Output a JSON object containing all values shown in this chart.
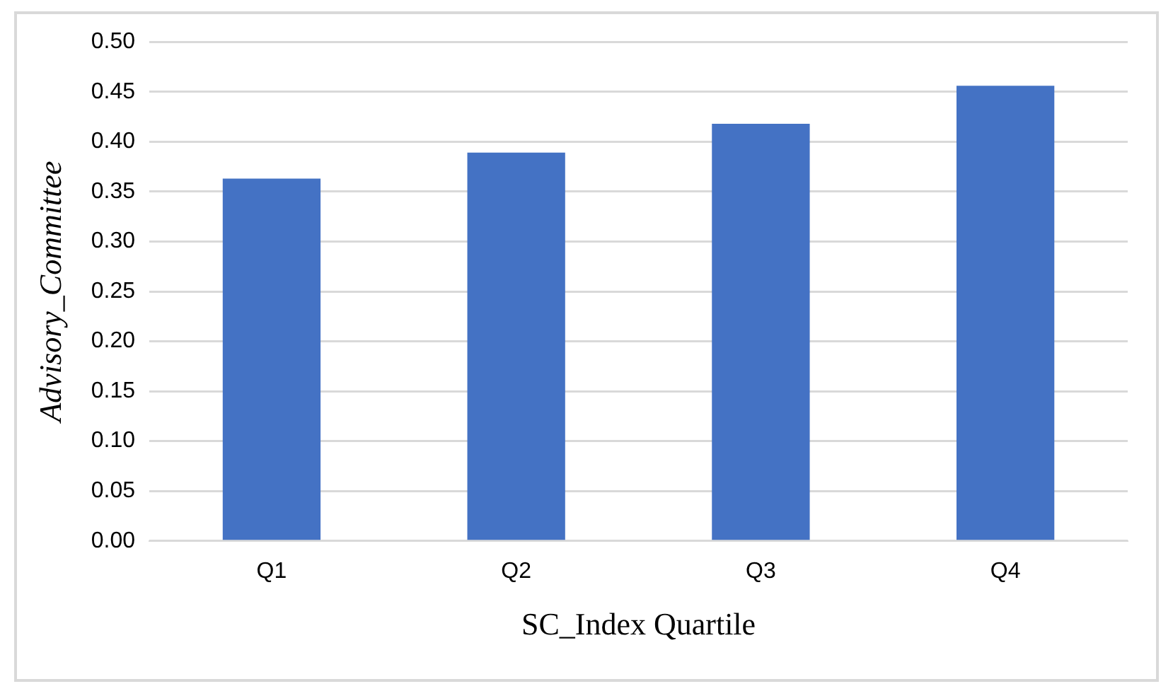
{
  "chart_data": {
    "type": "bar",
    "xlabel": "SC_Index Quartile",
    "ylabel": "Advisory_Committee",
    "categories": [
      "Q1",
      "Q2",
      "Q3",
      "Q4"
    ],
    "values": [
      0.363,
      0.389,
      0.418,
      0.456
    ],
    "color": "#4472c4",
    "ylim": [
      0,
      0.5
    ],
    "yticks": [
      {
        "value": 0,
        "label": "0.00"
      },
      {
        "value": 0.05,
        "label": "0.05"
      },
      {
        "value": 0.1,
        "label": "0.10"
      },
      {
        "value": 0.15,
        "label": "0.15"
      },
      {
        "value": 0.2,
        "label": "0.20"
      },
      {
        "value": 0.25,
        "label": "0.25"
      },
      {
        "value": 0.3,
        "label": "0.30"
      },
      {
        "value": 0.35,
        "label": "0.35"
      },
      {
        "value": 0.4,
        "label": "0.40"
      },
      {
        "value": 0.45,
        "label": "0.45"
      },
      {
        "value": 0.5,
        "label": "0.50"
      }
    ],
    "grid": "y"
  }
}
